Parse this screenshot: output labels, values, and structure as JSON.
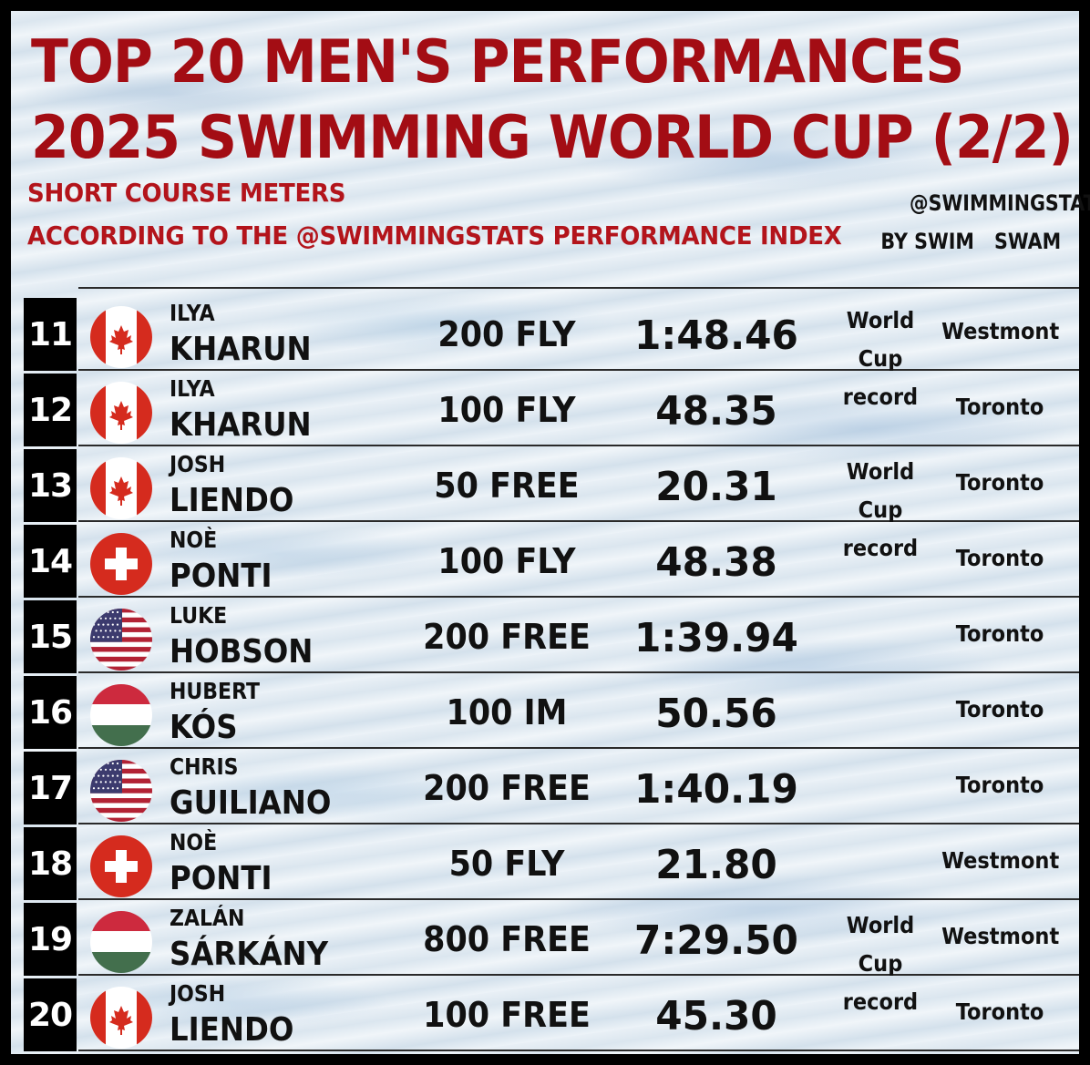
{
  "header": {
    "title_line1": "TOP 20 MEN'S PERFORMANCES",
    "title_line2": "2025 SWIMMING WORLD CUP (2/2)",
    "subtitle_line1": "SHORT COURSE METERS",
    "subtitle_line2": "ACCORDING TO THE @SWIMMINGSTATS PERFORMANCE INDEX"
  },
  "brand": {
    "handle": "@SWIMMINGSTATS",
    "by_left": "BY SWIM",
    "by_right": "SWAM"
  },
  "colors": {
    "title_red": "#a30d14",
    "rank_bg": "#000000",
    "canada_red": "#d52b1e",
    "swiss_red": "#d52b1e",
    "usa_red": "#b22234",
    "usa_blue": "#3c3b6e",
    "hungary_red": "#cd2a3e",
    "hungary_green": "#436f4d"
  },
  "rows": [
    {
      "rank": "11",
      "flag": "canada-flag-icon",
      "first": "ILYA",
      "last": "KHARUN",
      "event": "200 FLY",
      "time": "1:48.46",
      "note": "World Cup record",
      "venue": "Westmont"
    },
    {
      "rank": "12",
      "flag": "canada-flag-icon",
      "first": "ILYA",
      "last": "KHARUN",
      "event": "100 FLY",
      "time": "48.35",
      "note": "",
      "venue": "Toronto"
    },
    {
      "rank": "13",
      "flag": "canada-flag-icon",
      "first": "JOSH",
      "last": "LIENDO",
      "event": "50 FREE",
      "time": "20.31",
      "note": "World Cup record",
      "venue": "Toronto"
    },
    {
      "rank": "14",
      "flag": "switzerland-flag-icon",
      "first": "NOÈ",
      "last": "PONTI",
      "event": "100 FLY",
      "time": "48.38",
      "note": "",
      "venue": "Toronto"
    },
    {
      "rank": "15",
      "flag": "usa-flag-icon",
      "first": "LUKE",
      "last": "HOBSON",
      "event": "200 FREE",
      "time": "1:39.94",
      "note": "",
      "venue": "Toronto"
    },
    {
      "rank": "16",
      "flag": "hungary-flag-icon",
      "first": "HUBERT",
      "last": "KÓS",
      "event": "100 IM",
      "time": "50.56",
      "note": "",
      "venue": "Toronto"
    },
    {
      "rank": "17",
      "flag": "usa-flag-icon",
      "first": "CHRIS",
      "last": "GUILIANO",
      "event": "200 FREE",
      "time": "1:40.19",
      "note": "",
      "venue": "Toronto"
    },
    {
      "rank": "18",
      "flag": "switzerland-flag-icon",
      "first": "NOÈ",
      "last": "PONTI",
      "event": "50 FLY",
      "time": "21.80",
      "note": "",
      "venue": "Westmont"
    },
    {
      "rank": "19",
      "flag": "hungary-flag-icon",
      "first": "ZALÁN",
      "last": "SÁRKÁNY",
      "event": "800 FREE",
      "time": "7:29.50",
      "note": "World Cup record",
      "venue": "Westmont"
    },
    {
      "rank": "20",
      "flag": "canada-flag-icon",
      "first": "JOSH",
      "last": "LIENDO",
      "event": "100 FREE",
      "time": "45.30",
      "note": "",
      "venue": "Toronto"
    }
  ]
}
